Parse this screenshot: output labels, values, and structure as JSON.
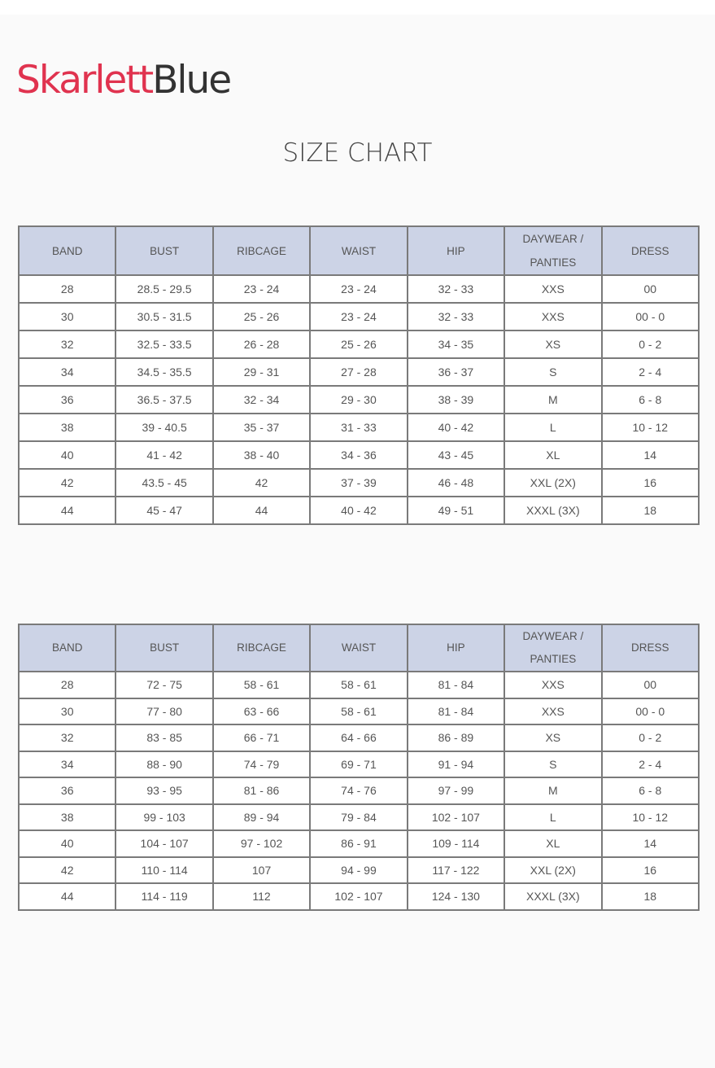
{
  "brand": {
    "part1": "Skarlett",
    "part2": "Blue",
    "colors": {
      "part1": "#e0334f",
      "part2": "#333333"
    }
  },
  "title": "SIZE CHART",
  "header_color": "#ccd3e6",
  "tables": [
    {
      "headers": [
        "BAND",
        "BUST",
        "RIBCAGE",
        "WAIST",
        "HIP",
        "DAYWEAR / PANTIES",
        "DRESS"
      ],
      "rows": [
        [
          "28",
          "28.5 - 29.5",
          "23 - 24",
          "23 - 24",
          "32 - 33",
          "XXS",
          "00"
        ],
        [
          "30",
          "30.5 - 31.5",
          "25 - 26",
          "23 - 24",
          "32 - 33",
          "XXS",
          "00 - 0"
        ],
        [
          "32",
          "32.5 - 33.5",
          "26 - 28",
          "25 - 26",
          "34 - 35",
          "XS",
          "0 - 2"
        ],
        [
          "34",
          "34.5 - 35.5",
          "29 - 31",
          "27 - 28",
          "36 - 37",
          "S",
          "2 - 4"
        ],
        [
          "36",
          "36.5 - 37.5",
          "32 - 34",
          "29 - 30",
          "38 - 39",
          "M",
          "6 - 8"
        ],
        [
          "38",
          "39 - 40.5",
          "35 - 37",
          "31 - 33",
          "40 - 42",
          "L",
          "10 - 12"
        ],
        [
          "40",
          "41 - 42",
          "38 - 40",
          "34 - 36",
          "43 - 45",
          "XL",
          "14"
        ],
        [
          "42",
          "43.5 - 45",
          "42",
          "37 - 39",
          "46 - 48",
          "XXL (2X)",
          "16"
        ],
        [
          "44",
          "45 - 47",
          "44",
          "40 - 42",
          "49 - 51",
          "XXXL (3X)",
          "18"
        ]
      ]
    },
    {
      "headers": [
        "BAND",
        "BUST",
        "RIBCAGE",
        "WAIST",
        "HIP",
        "DAYWEAR / PANTIES",
        "DRESS"
      ],
      "rows": [
        [
          "28",
          "72 - 75",
          "58 - 61",
          "58 - 61",
          "81 - 84",
          "XXS",
          "00"
        ],
        [
          "30",
          "77 - 80",
          "63 - 66",
          "58 - 61",
          "81 - 84",
          "XXS",
          "00 - 0"
        ],
        [
          "32",
          "83 - 85",
          "66 - 71",
          "64 - 66",
          "86 - 89",
          "XS",
          "0 - 2"
        ],
        [
          "34",
          "88 - 90",
          "74 - 79",
          "69 - 71",
          "91 - 94",
          "S",
          "2 - 4"
        ],
        [
          "36",
          "93 - 95",
          "81 - 86",
          "74 - 76",
          "97 - 99",
          "M",
          "6 - 8"
        ],
        [
          "38",
          "99 - 103",
          "89 - 94",
          "79 - 84",
          "102 - 107",
          "L",
          "10 - 12"
        ],
        [
          "40",
          "104 - 107",
          "97 - 102",
          "86 - 91",
          "109 - 114",
          "XL",
          "14"
        ],
        [
          "42",
          "110 - 114",
          "107",
          "94 - 99",
          "117 - 122",
          "XXL (2X)",
          "16"
        ],
        [
          "44",
          "114 - 119",
          "112",
          "102 - 107",
          "124 - 130",
          "XXXL (3X)",
          "18"
        ]
      ]
    }
  ]
}
